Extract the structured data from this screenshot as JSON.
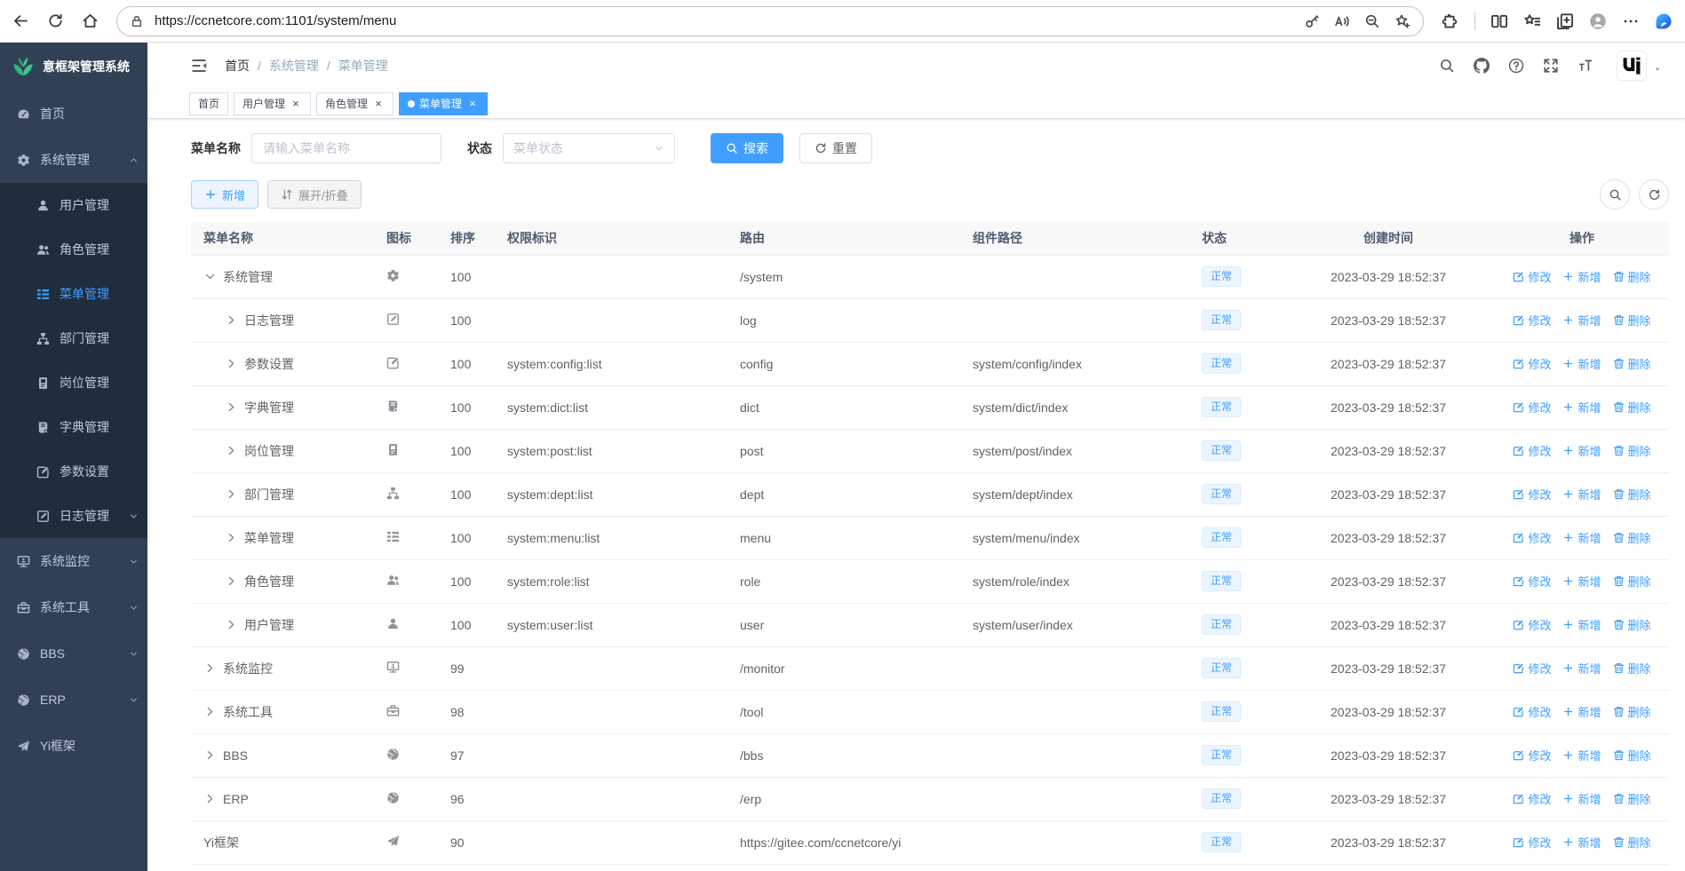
{
  "browser": {
    "url": "https://ccnetcore.com:1101/system/menu",
    "nav_icons": [
      "back-icon",
      "refresh-icon",
      "home-icon"
    ],
    "urlbar_icons": [
      "key-icon",
      "read-aloud-icon",
      "zoom-out-icon",
      "favorite-add-icon"
    ],
    "toolbar_right": [
      "extensions-icon",
      "divider",
      "split-screen-icon",
      "favorites-bar-icon",
      "collections-icon",
      "profile-icon",
      "more-icon",
      "bing-icon"
    ]
  },
  "sidebar": {
    "logo_text": "意框架管理系统",
    "logo_icon": "leaf-icon",
    "items": [
      {
        "key": "home",
        "label": "首页",
        "icon": "dashboard-icon"
      },
      {
        "key": "system-manage",
        "label": "系统管理",
        "icon": "gear-icon",
        "arrow": "up",
        "open": true,
        "children": [
          {
            "key": "user-manage",
            "label": "用户管理",
            "icon": "user-icon"
          },
          {
            "key": "role-manage",
            "label": "角色管理",
            "icon": "peoples-icon"
          },
          {
            "key": "menu-manage",
            "label": "菜单管理",
            "icon": "tree-table-icon",
            "active": true
          },
          {
            "key": "dept-manage",
            "label": "部门管理",
            "icon": "tree-icon"
          },
          {
            "key": "post-manage",
            "label": "岗位管理",
            "icon": "post-icon"
          },
          {
            "key": "dict-manage",
            "label": "字典管理",
            "icon": "dict-icon"
          },
          {
            "key": "config-setting",
            "label": "参数设置",
            "icon": "edit-icon"
          },
          {
            "key": "log-manage",
            "label": "日志管理",
            "icon": "log-icon",
            "arrow": "down"
          }
        ]
      },
      {
        "key": "system-monitor",
        "label": "系统监控",
        "icon": "monitor-icon",
        "arrow": "down"
      },
      {
        "key": "system-tool",
        "label": "系统工具",
        "icon": "tool-icon",
        "arrow": "down"
      },
      {
        "key": "bbs",
        "label": "BBS",
        "icon": "globe-icon",
        "arrow": "down"
      },
      {
        "key": "erp",
        "label": "ERP",
        "icon": "globe-icon",
        "arrow": "down"
      },
      {
        "key": "yi-framework",
        "label": "Yi框架",
        "icon": "paper-plane-icon"
      }
    ]
  },
  "header": {
    "breadcrumb": [
      "首页",
      "系统管理",
      "菜单管理"
    ],
    "separator": "/",
    "actions": [
      "search-icon",
      "github-icon",
      "question-icon",
      "fullscreen-icon",
      "font-size-icon"
    ]
  },
  "tabs": [
    {
      "label": "首页",
      "closable": false,
      "active": false
    },
    {
      "label": "用户管理",
      "closable": true,
      "active": false
    },
    {
      "label": "角色管理",
      "closable": true,
      "active": false
    },
    {
      "label": "菜单管理",
      "closable": true,
      "active": true
    }
  ],
  "filters": {
    "name_label": "菜单名称",
    "name_placeholder": "请输入菜单名称",
    "status_label": "状态",
    "status_placeholder": "菜单状态",
    "search_label": "搜索",
    "reset_label": "重置"
  },
  "toolbar": {
    "add_label": "新增",
    "toggle_label": "展开/折叠"
  },
  "table": {
    "columns": [
      "菜单名称",
      "图标",
      "排序",
      "权限标识",
      "路由",
      "组件路径",
      "状态",
      "创建时间",
      "操作"
    ],
    "actions": {
      "edit": "修改",
      "add": "新增",
      "delete": "删除"
    },
    "rows": [
      {
        "name": "系统管理",
        "icon": "gear-icon",
        "indent": 0,
        "expand": "open",
        "order": "100",
        "perm": "",
        "route": "/system",
        "component": "",
        "status": "正常",
        "created": "2023-03-29 18:52:37"
      },
      {
        "name": "日志管理",
        "icon": "log-icon",
        "indent": 1,
        "expand": "closed",
        "order": "100",
        "perm": "",
        "route": "log",
        "component": "",
        "status": "正常",
        "created": "2023-03-29 18:52:37"
      },
      {
        "name": "参数设置",
        "icon": "edit-icon",
        "indent": 1,
        "expand": "closed",
        "order": "100",
        "perm": "system:config:list",
        "route": "config",
        "component": "system/config/index",
        "status": "正常",
        "created": "2023-03-29 18:52:37"
      },
      {
        "name": "字典管理",
        "icon": "dict-icon",
        "indent": 1,
        "expand": "closed",
        "order": "100",
        "perm": "system:dict:list",
        "route": "dict",
        "component": "system/dict/index",
        "status": "正常",
        "created": "2023-03-29 18:52:37"
      },
      {
        "name": "岗位管理",
        "icon": "post-icon",
        "indent": 1,
        "expand": "closed",
        "order": "100",
        "perm": "system:post:list",
        "route": "post",
        "component": "system/post/index",
        "status": "正常",
        "created": "2023-03-29 18:52:37"
      },
      {
        "name": "部门管理",
        "icon": "tree-icon",
        "indent": 1,
        "expand": "closed",
        "order": "100",
        "perm": "system:dept:list",
        "route": "dept",
        "component": "system/dept/index",
        "status": "正常",
        "created": "2023-03-29 18:52:37"
      },
      {
        "name": "菜单管理",
        "icon": "tree-table-icon",
        "indent": 1,
        "expand": "closed",
        "order": "100",
        "perm": "system:menu:list",
        "route": "menu",
        "component": "system/menu/index",
        "status": "正常",
        "created": "2023-03-29 18:52:37"
      },
      {
        "name": "角色管理",
        "icon": "peoples-icon",
        "indent": 1,
        "expand": "closed",
        "order": "100",
        "perm": "system:role:list",
        "route": "role",
        "component": "system/role/index",
        "status": "正常",
        "created": "2023-03-29 18:52:37"
      },
      {
        "name": "用户管理",
        "icon": "user-icon",
        "indent": 1,
        "expand": "closed",
        "order": "100",
        "perm": "system:user:list",
        "route": "user",
        "component": "system/user/index",
        "status": "正常",
        "created": "2023-03-29 18:52:37"
      },
      {
        "name": "系统监控",
        "icon": "monitor-icon",
        "indent": 0,
        "expand": "closed",
        "order": "99",
        "perm": "",
        "route": "/monitor",
        "component": "",
        "status": "正常",
        "created": "2023-03-29 18:52:37"
      },
      {
        "name": "系统工具",
        "icon": "tool-icon",
        "indent": 0,
        "expand": "closed",
        "order": "98",
        "perm": "",
        "route": "/tool",
        "component": "",
        "status": "正常",
        "created": "2023-03-29 18:52:37"
      },
      {
        "name": "BBS",
        "icon": "globe-icon",
        "indent": 0,
        "expand": "closed",
        "order": "97",
        "perm": "",
        "route": "/bbs",
        "component": "",
        "status": "正常",
        "created": "2023-03-29 18:52:37"
      },
      {
        "name": "ERP",
        "icon": "globe-icon",
        "indent": 0,
        "expand": "closed",
        "order": "96",
        "perm": "",
        "route": "/erp",
        "component": "",
        "status": "正常",
        "created": "2023-03-29 18:52:37"
      },
      {
        "name": "Yi框架",
        "icon": "paper-plane-icon",
        "indent": 0,
        "expand": "none",
        "order": "90",
        "perm": "",
        "route": "https://gitee.com/ccnetcore/yi",
        "component": "",
        "status": "正常",
        "created": "2023-03-29 18:52:37"
      }
    ]
  },
  "colors": {
    "primary": "#409eff",
    "sidebar_bg": "#304156",
    "submenu_bg": "#1f2d3d",
    "badge_bg": "#ecf5ff",
    "badge_border": "#d9ecff",
    "logo_green": "#36b37e"
  }
}
